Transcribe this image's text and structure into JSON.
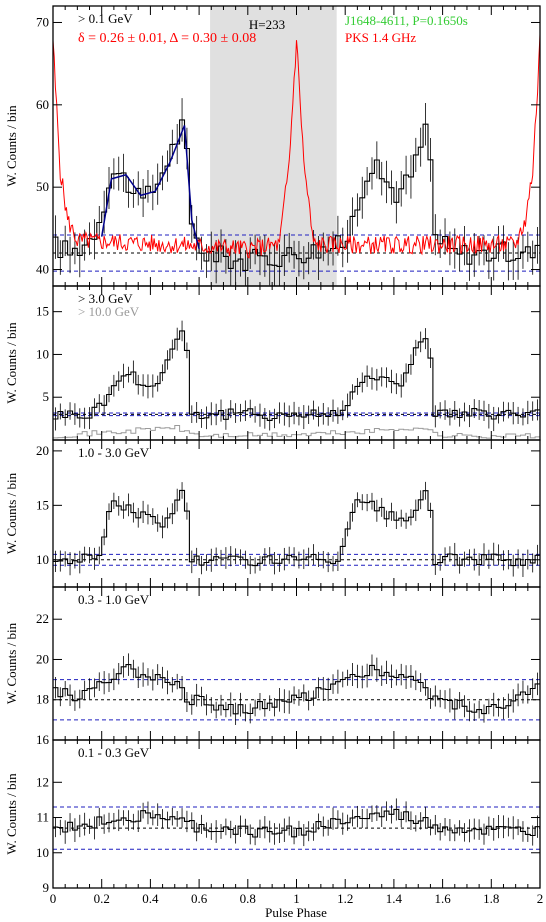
{
  "colors": {
    "axis": "#000000",
    "histogram": "#000000",
    "radio": "#ff0000",
    "fit": "#00008b",
    "fit_line": "#0000cc",
    "pulsar_label": "#33cc33",
    "radio_label": "#ff0000",
    "shade": "#e0e0e0",
    "high_energy": "#999999"
  },
  "x_axis": {
    "label": "Pulse Phase",
    "range": [
      0,
      2
    ],
    "tick_labels": [
      "0",
      "0.2",
      "0.4",
      "0.6",
      "0.8",
      "1",
      "1.2",
      "1.4",
      "1.6",
      "1.8",
      "2"
    ]
  },
  "panels": [
    {
      "energy": "> 0.1 GeV",
      "ylabel": "W. Counts / bin",
      "ylim": [
        38,
        72
      ],
      "yticks": [
        40,
        50,
        60,
        70
      ],
      "background_level": 42,
      "background_band": [
        39.8,
        44.2
      ],
      "fit_color_line": "blue",
      "shaded_range": [
        0.645,
        1.165
      ],
      "h_stat": "H=233",
      "pulsar": "J1648-4611, P=0.1650s",
      "params": "δ = 0.26 ± 0.01, Δ = 0.30 ± 0.08",
      "radio_name": "PKS 1.4 GHz"
    },
    {
      "energy": "> 3.0 GeV",
      "energy2": "> 10.0 GeV",
      "ylabel": "W. Counts / bin",
      "ylim": [
        0,
        18
      ],
      "yticks": [
        5,
        10,
        15
      ],
      "background_level": 3,
      "background_band": [
        2.85,
        3.15
      ]
    },
    {
      "energy": "1.0 - 3.0 GeV",
      "ylabel": "W. Counts / bin",
      "ylim": [
        7.5,
        21
      ],
      "yticks": [
        10,
        15,
        20
      ],
      "background_level": 10,
      "background_band": [
        9.5,
        10.5
      ]
    },
    {
      "energy": "0.3 - 1.0 GeV",
      "ylabel": "W. Counts / bin",
      "ylim": [
        16,
        23.6
      ],
      "yticks": [
        16,
        18,
        20,
        22
      ],
      "background_level": 18,
      "background_band": [
        17,
        19
      ]
    },
    {
      "energy": "0.1 - 0.3 GeV",
      "ylabel": "W. Counts / bin",
      "ylim": [
        9,
        13.2
      ],
      "yticks": [
        9,
        10,
        11,
        12
      ],
      "background_level": 10.7,
      "background_band": [
        10.1,
        11.3
      ]
    }
  ],
  "chart_data": [
    {
      "type": "line",
      "title": "> 0.1 GeV",
      "xlabel": "",
      "ylabel": "W. Counts / bin",
      "ylim": [
        38,
        72
      ],
      "series": [
        {
          "name": "> 0.1 GeV",
          "shape": [
            [
              0,
              43
            ],
            [
              0.08,
              42
            ],
            [
              0.16,
              44
            ],
            [
              0.2,
              47
            ],
            [
              0.24,
              52
            ],
            [
              0.3,
              51
            ],
            [
              0.36,
              48
            ],
            [
              0.42,
              50
            ],
            [
              0.48,
              54
            ],
            [
              0.54,
              58
            ],
            [
              0.57,
              45
            ],
            [
              0.62,
              42
            ],
            [
              0.8,
              41
            ],
            [
              1.0,
              42
            ],
            [
              1.2,
              43
            ],
            [
              1.24,
              47
            ],
            [
              1.3,
              53
            ],
            [
              1.36,
              51
            ],
            [
              1.42,
              49
            ],
            [
              1.48,
              52
            ],
            [
              1.54,
              58
            ],
            [
              1.57,
              44
            ],
            [
              1.64,
              42
            ],
            [
              2.0,
              42
            ]
          ]
        },
        {
          "name": "PKS 1.4 GHz",
          "shape": [
            [
              0,
              68
            ],
            [
              0.01,
              62
            ],
            [
              0.03,
              52
            ],
            [
              0.06,
              46
            ],
            [
              0.1,
              43.5
            ],
            [
              0.5,
              43
            ],
            [
              0.8,
              42.5
            ],
            [
              0.93,
              43
            ],
            [
              0.97,
              53
            ],
            [
              1.0,
              68
            ],
            [
              1.03,
              53
            ],
            [
              1.07,
              43
            ],
            [
              1.5,
              43
            ],
            [
              1.9,
              43
            ],
            [
              1.94,
              46
            ],
            [
              1.97,
              52
            ],
            [
              1.99,
              62
            ],
            [
              2.0,
              68
            ]
          ]
        }
      ]
    },
    {
      "type": "line",
      "title": "> 3.0 GeV",
      "xlabel": "",
      "ylabel": "W. Counts / bin",
      "ylim": [
        0,
        18
      ],
      "series": [
        {
          "name": "> 3.0 GeV",
          "shape": [
            [
              0,
              3
            ],
            [
              0.16,
              3
            ],
            [
              0.22,
              5
            ],
            [
              0.3,
              8
            ],
            [
              0.36,
              7
            ],
            [
              0.42,
              6
            ],
            [
              0.48,
              10
            ],
            [
              0.54,
              14
            ],
            [
              0.57,
              3
            ],
            [
              1.0,
              3
            ],
            [
              1.16,
              3
            ],
            [
              1.22,
              5
            ],
            [
              1.3,
              8
            ],
            [
              1.36,
              7
            ],
            [
              1.42,
              6
            ],
            [
              1.48,
              10
            ],
            [
              1.54,
              13
            ],
            [
              1.57,
              3
            ],
            [
              2.0,
              3
            ]
          ]
        },
        {
          "name": "> 10.0 GeV",
          "shape": [
            [
              0,
              0.5
            ],
            [
              0.3,
              1
            ],
            [
              0.5,
              1.5
            ],
            [
              0.6,
              0.5
            ],
            [
              1.0,
              0.6
            ],
            [
              1.3,
              1
            ],
            [
              1.5,
              1.5
            ],
            [
              1.6,
              0.5
            ],
            [
              2.0,
              0.5
            ]
          ]
        }
      ]
    },
    {
      "type": "line",
      "title": "1.0 - 3.0 GeV",
      "xlabel": "",
      "ylabel": "W. Counts / bin",
      "ylim": [
        7.5,
        21
      ],
      "series": [
        {
          "name": "1.0 - 3.0 GeV",
          "shape": [
            [
              0,
              10
            ],
            [
              0.18,
              10
            ],
            [
              0.24,
              15
            ],
            [
              0.3,
              15
            ],
            [
              0.38,
              14
            ],
            [
              0.46,
              13
            ],
            [
              0.54,
              17
            ],
            [
              0.57,
              10
            ],
            [
              1.0,
              10
            ],
            [
              1.18,
              10
            ],
            [
              1.24,
              15
            ],
            [
              1.3,
              15
            ],
            [
              1.38,
              14
            ],
            [
              1.46,
              13
            ],
            [
              1.54,
              17
            ],
            [
              1.57,
              10
            ],
            [
              2.0,
              10
            ]
          ]
        }
      ]
    },
    {
      "type": "line",
      "title": "0.3 - 1.0 GeV",
      "xlabel": "",
      "ylabel": "W. Counts / bin",
      "ylim": [
        16,
        23.6
      ],
      "series": [
        {
          "name": "0.3 - 1.0 GeV",
          "shape": [
            [
              0,
              18.6
            ],
            [
              0.1,
              18
            ],
            [
              0.2,
              19
            ],
            [
              0.3,
              19.5
            ],
            [
              0.4,
              19.3
            ],
            [
              0.5,
              19
            ],
            [
              0.56,
              18
            ],
            [
              0.8,
              17.5
            ],
            [
              1.0,
              18
            ],
            [
              1.2,
              19
            ],
            [
              1.3,
              19.5
            ],
            [
              1.4,
              19.3
            ],
            [
              1.5,
              19
            ],
            [
              1.56,
              18
            ],
            [
              1.8,
              17.5
            ],
            [
              2.0,
              18.6
            ]
          ]
        }
      ]
    },
    {
      "type": "line",
      "title": "0.1 - 0.3 GeV",
      "xlabel": "Pulse Phase",
      "ylabel": "W. Counts / bin",
      "ylim": [
        9,
        13.2
      ],
      "series": [
        {
          "name": "0.1 - 0.3 GeV",
          "shape": [
            [
              0,
              10.6
            ],
            [
              0.2,
              10.9
            ],
            [
              0.4,
              11.1
            ],
            [
              0.6,
              10.7
            ],
            [
              0.8,
              10.6
            ],
            [
              1.0,
              10.6
            ],
            [
              1.2,
              10.9
            ],
            [
              1.4,
              11.1
            ],
            [
              1.6,
              10.7
            ],
            [
              1.8,
              10.6
            ],
            [
              2.0,
              10.6
            ]
          ]
        }
      ]
    }
  ]
}
